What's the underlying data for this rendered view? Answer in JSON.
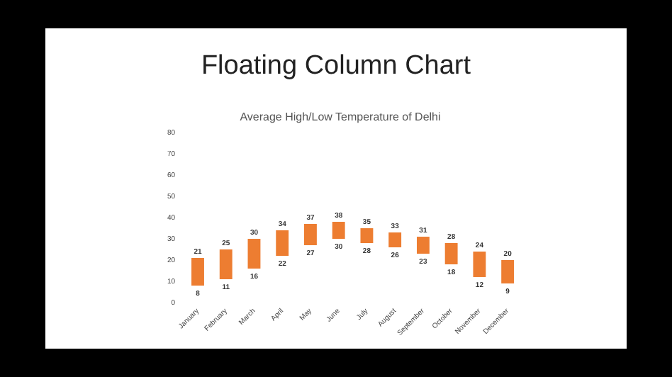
{
  "chart_data": {
    "type": "bar",
    "title": "Floating Column Chart",
    "subtitle": "Average High/Low Temperature of Delhi",
    "categories": [
      "January",
      "February",
      "March",
      "April",
      "May",
      "June",
      "July",
      "August",
      "September",
      "October",
      "November",
      "December"
    ],
    "values": [
      13,
      14,
      14,
      12,
      10,
      8,
      7,
      7,
      8,
      10,
      12,
      11
    ],
    "base": [
      8,
      11,
      16,
      22,
      27,
      30,
      28,
      26,
      23,
      18,
      12,
      9
    ],
    "color": "#ed7d31",
    "ylim": [
      0,
      80
    ],
    "yticks": [
      0,
      10,
      20,
      30,
      40,
      50,
      60,
      70,
      80
    ],
    "grid": false,
    "legend": false,
    "annotations": [
      {
        "text": "21",
        "x": "January",
        "y": 21
      },
      {
        "text": "8",
        "x": "January",
        "y": 8
      },
      {
        "text": "25",
        "x": "February",
        "y": 25
      },
      {
        "text": "11",
        "x": "February",
        "y": 11
      },
      {
        "text": "30",
        "x": "March",
        "y": 30
      },
      {
        "text": "16",
        "x": "March",
        "y": 16
      },
      {
        "text": "34",
        "x": "April",
        "y": 34
      },
      {
        "text": "22",
        "x": "April",
        "y": 22
      },
      {
        "text": "37",
        "x": "May",
        "y": 37
      },
      {
        "text": "27",
        "x": "May",
        "y": 27
      },
      {
        "text": "38",
        "x": "June",
        "y": 38
      },
      {
        "text": "30",
        "x": "June",
        "y": 30
      },
      {
        "text": "35",
        "x": "July",
        "y": 35
      },
      {
        "text": "28",
        "x": "July",
        "y": 28
      },
      {
        "text": "33",
        "x": "August",
        "y": 33
      },
      {
        "text": "26",
        "x": "August",
        "y": 26
      },
      {
        "text": "31",
        "x": "September",
        "y": 31
      },
      {
        "text": "23",
        "x": "September",
        "y": 23
      },
      {
        "text": "28",
        "x": "October",
        "y": 28
      },
      {
        "text": "18",
        "x": "October",
        "y": 18
      },
      {
        "text": "24",
        "x": "November",
        "y": 24
      },
      {
        "text": "12",
        "x": "November",
        "y": 12
      },
      {
        "text": "20",
        "x": "December",
        "y": 20
      },
      {
        "text": "9",
        "x": "December",
        "y": 9
      }
    ]
  }
}
